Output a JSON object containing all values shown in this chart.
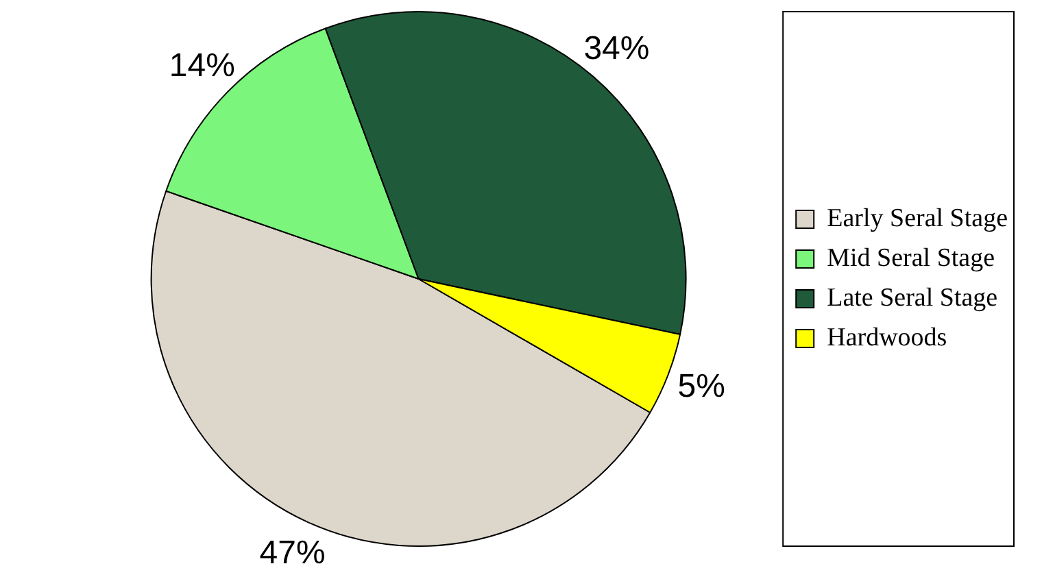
{
  "chart_data": {
    "type": "pie",
    "categories": [
      "Early Seral Stage",
      "Mid Seral Stage",
      "Late Seral Stage",
      "Hardwoods"
    ],
    "values": [
      47,
      14,
      34,
      5
    ],
    "value_labels": [
      "47%",
      "14%",
      "34%",
      "5%"
    ],
    "colors": [
      "#ddd6ca",
      "#7cf57c",
      "#1f5a3a",
      "#ffff00"
    ],
    "legend": "right"
  }
}
